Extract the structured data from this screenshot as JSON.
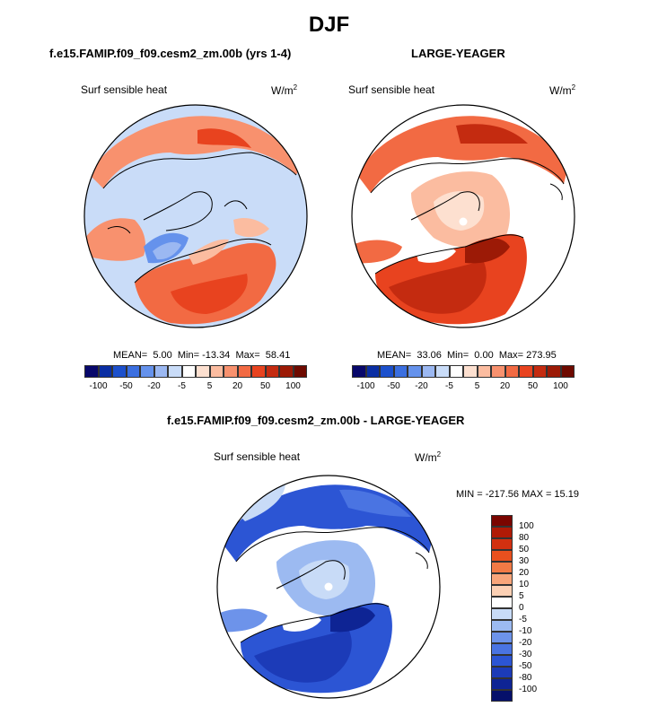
{
  "figure": {
    "season": "DJF"
  },
  "panel1": {
    "title": "f.e15.FAMIP.f09_f09.cesm2_zm.00b (yrs 1-4)",
    "variable": "Surf sensible heat",
    "units_base": "W/m",
    "units_exp": "2",
    "mean_label": "MEAN=",
    "mean": "5.00",
    "min_label": "Min=",
    "min": "-13.34",
    "max_label": "Max=",
    "max": "58.41"
  },
  "panel2": {
    "title": "LARGE-YEAGER",
    "variable": "Surf sensible heat",
    "units_base": "W/m",
    "units_exp": "2",
    "mean_label": "MEAN=",
    "mean": "33.06",
    "min_label": "Min=",
    "min": "0.00",
    "max_label": "Max=",
    "max": "273.95"
  },
  "panel3": {
    "title": "f.e15.FAMIP.f09_f09.cesm2_zm.00b - LARGE-YEAGER",
    "variable": "Surf sensible heat",
    "units_base": "W/m",
    "units_exp": "2",
    "minmax": "MIN = -217.56 MAX =  15.19"
  },
  "chart_data": [
    {
      "type": "heatmap",
      "projection": "north polar stereographic",
      "title": "f.e15.FAMIP.f09_f09.cesm2_zm.00b (yrs 1-4)",
      "variable": "Surf sensible heat",
      "units": "W/m2",
      "stats": {
        "mean": 5.0,
        "min": -13.34,
        "max": 58.41
      },
      "colorbar_ticks": [
        "-100",
        "-50",
        "-20",
        "-5",
        "5",
        "20",
        "50",
        "100"
      ],
      "colorbar_colors": [
        "#08086b",
        "#0a2ea3",
        "#1c50cc",
        "#3b6fe0",
        "#6592ec",
        "#9bb8f2",
        "#c9dcf8",
        "#ffffff",
        "#fde0d0",
        "#fbbca0",
        "#f8916e",
        "#f26a43",
        "#e8431f",
        "#c42b10",
        "#9c1a06",
        "#6e0a00"
      ]
    },
    {
      "type": "heatmap",
      "projection": "north polar stereographic",
      "title": "LARGE-YEAGER",
      "variable": "Surf sensible heat",
      "units": "W/m2",
      "stats": {
        "mean": 33.06,
        "min": 0.0,
        "max": 273.95
      },
      "colorbar_ticks": [
        "-100",
        "-50",
        "-20",
        "-5",
        "5",
        "20",
        "50",
        "100"
      ],
      "colorbar_colors": [
        "#08086b",
        "#0a2ea3",
        "#1c50cc",
        "#3b6fe0",
        "#6592ec",
        "#9bb8f2",
        "#c9dcf8",
        "#ffffff",
        "#fde0d0",
        "#fbbca0",
        "#f8916e",
        "#f26a43",
        "#e8431f",
        "#c42b10",
        "#9c1a06",
        "#6e0a00"
      ]
    },
    {
      "type": "heatmap",
      "projection": "north polar stereographic",
      "title": "f.e15.FAMIP.f09_f09.cesm2_zm.00b - LARGE-YEAGER",
      "variable": "Surf sensible heat",
      "units": "W/m2",
      "stats": {
        "min": -217.56,
        "max": 15.19
      },
      "colorbar_ticks": [
        "100",
        "80",
        "50",
        "30",
        "20",
        "10",
        "5",
        "0",
        "-5",
        "-10",
        "-20",
        "-30",
        "-50",
        "-80",
        "-100"
      ],
      "colorbar_colors": [
        "#7a0500",
        "#b01a06",
        "#d23010",
        "#e8501e",
        "#f27a45",
        "#f8a57a",
        "#fcd0b4",
        "#ffffff",
        "#c8dbf7",
        "#9cbaf1",
        "#6d93ea",
        "#4a74e2",
        "#2c55d4",
        "#1c3bb8",
        "#0e2494",
        "#06106a"
      ]
    }
  ]
}
